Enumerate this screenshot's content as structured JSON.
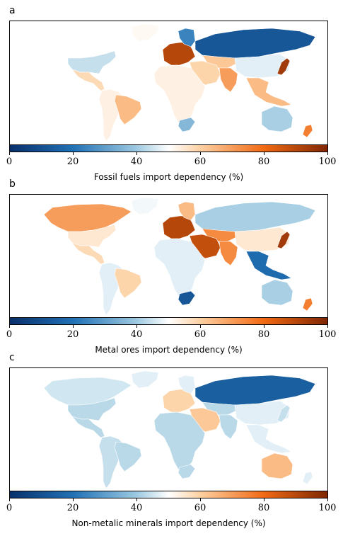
{
  "colormap": {
    "stops": [
      "#08306b",
      "#2171b5",
      "#9ecae1",
      "#ffffff",
      "#fdd0a2",
      "#f16913",
      "#7f2704"
    ],
    "range": [
      0,
      100
    ],
    "ticks": [
      "0",
      "20",
      "40",
      "60",
      "80",
      "100"
    ]
  },
  "panels": [
    {
      "letter": "a",
      "xlabel": "Fossil fuels import dependency (%)",
      "regions": [
        {
          "name": "north-america-north",
          "value": 50
        },
        {
          "name": "united-states",
          "value": 40
        },
        {
          "name": "central-america",
          "value": 63
        },
        {
          "name": "south-america",
          "value": 55
        },
        {
          "name": "brazil",
          "value": 70
        },
        {
          "name": "greenland",
          "value": 52
        },
        {
          "name": "europe",
          "value": 92
        },
        {
          "name": "scandinavia",
          "value": 20
        },
        {
          "name": "russia",
          "value": 10
        },
        {
          "name": "central-asia",
          "value": 68
        },
        {
          "name": "middle-east",
          "value": 65
        },
        {
          "name": "africa",
          "value": 55
        },
        {
          "name": "southern-africa",
          "value": 30
        },
        {
          "name": "india",
          "value": 75
        },
        {
          "name": "china",
          "value": 45
        },
        {
          "name": "southeast-asia",
          "value": 70
        },
        {
          "name": "japan",
          "value": 95
        },
        {
          "name": "australia",
          "value": 35
        },
        {
          "name": "new-zealand",
          "value": 80
        }
      ]
    },
    {
      "letter": "b",
      "xlabel": "Metal ores import dependency (%)",
      "regions": [
        {
          "name": "north-america-north",
          "value": 75
        },
        {
          "name": "united-states",
          "value": 58
        },
        {
          "name": "central-america",
          "value": 63
        },
        {
          "name": "south-america",
          "value": 45
        },
        {
          "name": "brazil",
          "value": 65
        },
        {
          "name": "greenland",
          "value": 48
        },
        {
          "name": "europe",
          "value": 92
        },
        {
          "name": "scandinavia",
          "value": 70
        },
        {
          "name": "russia",
          "value": 35
        },
        {
          "name": "central-asia",
          "value": 78
        },
        {
          "name": "middle-east",
          "value": 90
        },
        {
          "name": "africa",
          "value": 45
        },
        {
          "name": "southern-africa",
          "value": 10
        },
        {
          "name": "india",
          "value": 78
        },
        {
          "name": "china",
          "value": 58
        },
        {
          "name": "southeast-asia",
          "value": 15
        },
        {
          "name": "japan",
          "value": 95
        },
        {
          "name": "australia",
          "value": 35
        },
        {
          "name": "new-zealand",
          "value": 80
        }
      ]
    },
    {
      "letter": "c",
      "xlabel": "Non-metalic minerals import dependency (%)",
      "regions": [
        {
          "name": "north-america-north",
          "value": 42
        },
        {
          "name": "united-states",
          "value": 38
        },
        {
          "name": "central-america",
          "value": 38
        },
        {
          "name": "south-america",
          "value": 40
        },
        {
          "name": "brazil",
          "value": 38
        },
        {
          "name": "greenland",
          "value": 45
        },
        {
          "name": "europe",
          "value": 65
        },
        {
          "name": "scandinavia",
          "value": 45
        },
        {
          "name": "russia",
          "value": 12
        },
        {
          "name": "central-asia",
          "value": 38
        },
        {
          "name": "middle-east",
          "value": 68
        },
        {
          "name": "africa",
          "value": 38
        },
        {
          "name": "southern-africa",
          "value": 38
        },
        {
          "name": "india",
          "value": 38
        },
        {
          "name": "china",
          "value": 45
        },
        {
          "name": "southeast-asia",
          "value": 45
        },
        {
          "name": "japan",
          "value": 40
        },
        {
          "name": "australia",
          "value": 70
        },
        {
          "name": "new-zealand",
          "value": 45
        }
      ]
    }
  ]
}
